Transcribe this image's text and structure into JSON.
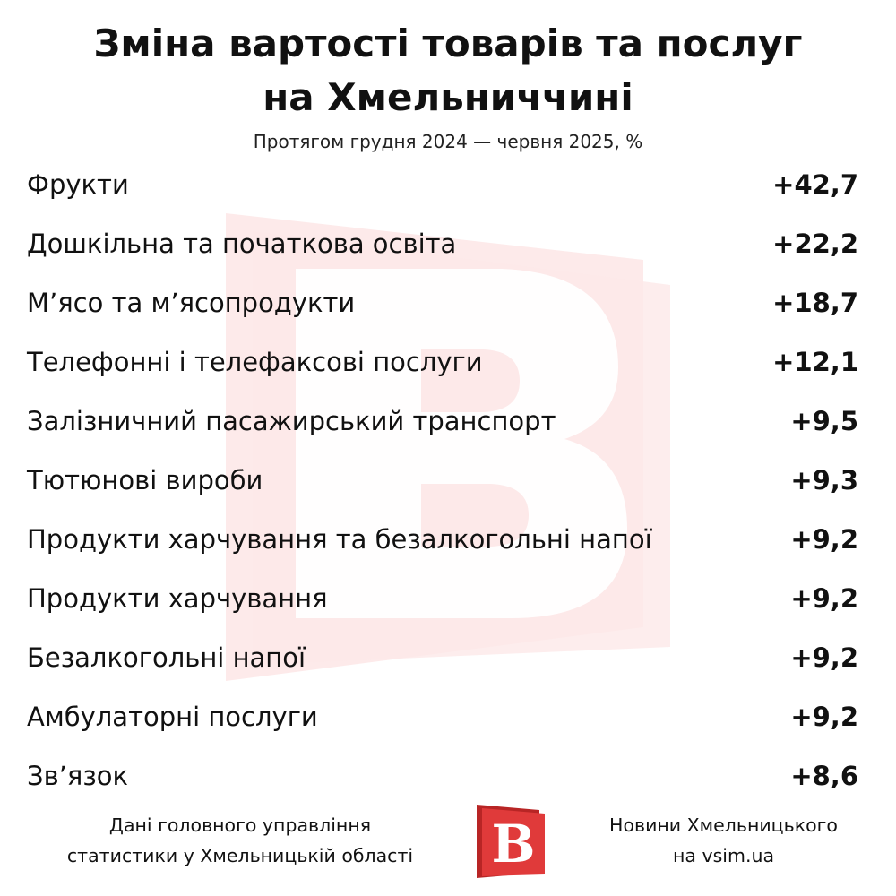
{
  "header": {
    "title_line1": "Зміна вартості товарів та послуг",
    "title_line2": "на Хмельниччині",
    "subtitle": "Протягом грудня 2024 — червня 2025, %"
  },
  "chart_data": {
    "type": "table",
    "title": "Зміна вартості товарів та послуг на Хмельниччині",
    "subtitle": "Протягом грудня 2024 — червня 2025, %",
    "rows": [
      {
        "label": "Фрукти",
        "value": 42.7,
        "display": "+42,7"
      },
      {
        "label": "Дошкільна та початкова освіта",
        "value": 22.2,
        "display": "+22,2"
      },
      {
        "label": "М’ясо та м’ясопродукти",
        "value": 18.7,
        "display": "+18,7"
      },
      {
        "label": "Телефонні і телефаксові послуги",
        "value": 12.1,
        "display": "+12,1"
      },
      {
        "label": "Залізничний пасажирський транспорт",
        "value": 9.5,
        "display": "+9,5"
      },
      {
        "label": "Тютюнові вироби",
        "value": 9.3,
        "display": "+9,3"
      },
      {
        "label": "Продукти харчування та безалкогольні напої",
        "value": 9.2,
        "display": "+9,2"
      },
      {
        "label": "Продукти харчування",
        "value": 9.2,
        "display": "+9,2"
      },
      {
        "label": "Безалкогольні напої",
        "value": 9.2,
        "display": "+9,2"
      },
      {
        "label": "Амбулаторні послуги",
        "value": 9.2,
        "display": "+9,2"
      },
      {
        "label": "Зв’язок",
        "value": 8.6,
        "display": "+8,6"
      }
    ]
  },
  "footer": {
    "source_line1": "Дані головного управління",
    "source_line2": "статистики у Хмельницькій області",
    "brand_line1": "Новини Хмельницького",
    "brand_line2": "на vsim.ua",
    "logo_letter": "В"
  },
  "colors": {
    "brand_red": "#e03a3a",
    "brand_red_dark": "#b82525",
    "watermark_tint": "#fde8e8",
    "text": "#111111"
  },
  "icons": {
    "watermark": "vsim-logo-watermark",
    "footer_logo": "vsim-logo"
  }
}
